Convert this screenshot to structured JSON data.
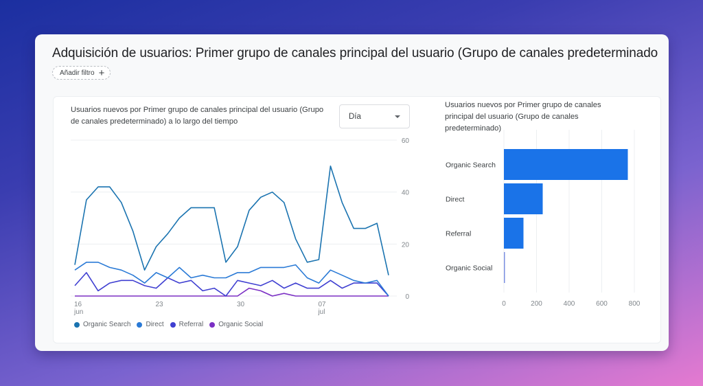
{
  "page": {
    "title": "Adquisición de usuarios: Primer grupo de canales principal del usuario (Grupo de canales predeterminado",
    "filter_button_label": "Añadir filtro",
    "filter_button_icon": "plus-icon"
  },
  "line_chart": {
    "title": "Usuarios nuevos por Primer grupo de canales principal del usuario (Grupo de canales predeterminado) a lo largo del tiempo",
    "granularity_dropdown": {
      "selected": "Día",
      "icon": "caret-down-icon"
    }
  },
  "bar_chart": {
    "title": "Usuarios nuevos por Primer grupo de canales principal del usuario (Grupo de canales predeterminado)"
  },
  "colors": {
    "organic_search": "#1a73b0",
    "direct": "#2a7ad6",
    "referral": "#3f3fd1",
    "organic_social": "#7b2fc4",
    "bar": "#1a73e8",
    "grid": "#eceff1",
    "axis_text": "#80868b"
  },
  "chart_data": [
    {
      "type": "line",
      "title": "Usuarios nuevos por Primer grupo de canales principal del usuario (Grupo de canales predeterminado) a lo largo del tiempo",
      "xlabel": "",
      "ylabel": "",
      "x_tick_labels": [
        {
          "index": 0,
          "label": "16",
          "sub": "jun"
        },
        {
          "index": 7,
          "label": "23",
          "sub": ""
        },
        {
          "index": 14,
          "label": "30",
          "sub": ""
        },
        {
          "index": 21,
          "label": "07",
          "sub": "jul"
        }
      ],
      "x": [
        "16 jun",
        "17 jun",
        "18 jun",
        "19 jun",
        "20 jun",
        "21 jun",
        "22 jun",
        "23 jun",
        "24 jun",
        "25 jun",
        "26 jun",
        "27 jun",
        "28 jun",
        "29 jun",
        "30 jun",
        "01 jul",
        "02 jul",
        "03 jul",
        "04 jul",
        "05 jul",
        "06 jul",
        "07 jul",
        "08 jul",
        "09 jul",
        "10 jul",
        "11 jul",
        "12 jul",
        "13 jul"
      ],
      "y_ticks": [
        0,
        20,
        40,
        60
      ],
      "ylim": [
        0,
        60
      ],
      "grid": true,
      "y_axis_position": "right",
      "legend_position": "bottom",
      "series": [
        {
          "name": "Organic Search",
          "color": "#1a73b0",
          "values": [
            12,
            37,
            42,
            42,
            36,
            25,
            10,
            19,
            24,
            30,
            34,
            34,
            34,
            13,
            19,
            33,
            38,
            40,
            36,
            22,
            13,
            14,
            50,
            36,
            26,
            26,
            28,
            8
          ]
        },
        {
          "name": "Direct",
          "color": "#2a7ad6",
          "values": [
            10,
            13,
            13,
            11,
            10,
            8,
            5,
            9,
            7,
            11,
            7,
            8,
            7,
            7,
            9,
            9,
            11,
            11,
            11,
            12,
            7,
            5,
            10,
            8,
            6,
            5,
            6,
            0
          ]
        },
        {
          "name": "Referral",
          "color": "#3f3fd1",
          "values": [
            4,
            9,
            2,
            5,
            6,
            6,
            4,
            3,
            7,
            5,
            6,
            2,
            3,
            0,
            6,
            5,
            4,
            6,
            3,
            5,
            3,
            3,
            6,
            3,
            5,
            5,
            5,
            0
          ]
        },
        {
          "name": "Organic Social",
          "color": "#7b2fc4",
          "values": [
            0,
            0,
            0,
            0,
            0,
            0,
            0,
            0,
            0,
            0,
            0,
            0,
            0,
            0,
            0,
            3,
            2,
            0,
            1,
            0,
            0,
            0,
            0,
            0,
            0,
            0,
            0,
            0
          ]
        }
      ]
    },
    {
      "type": "bar",
      "orientation": "horizontal",
      "title": "Usuarios nuevos por Primer grupo de canales principal del usuario (Grupo de canales predeterminado)",
      "categories": [
        "Organic Search",
        "Direct",
        "Referral",
        "Organic Social"
      ],
      "values": [
        760,
        238,
        120,
        5
      ],
      "x_ticks": [
        0,
        200,
        400,
        600,
        800
      ],
      "xlim": [
        0,
        800
      ],
      "grid": true,
      "color": "#1a73e8"
    }
  ]
}
